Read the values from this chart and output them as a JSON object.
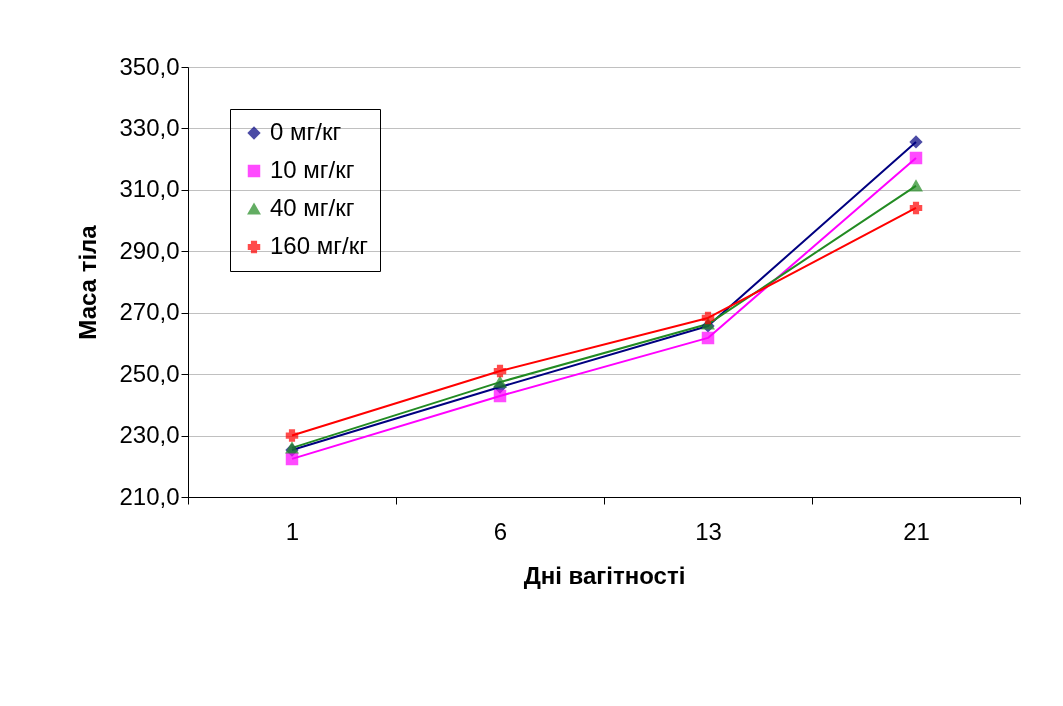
{
  "chart_data": {
    "type": "line",
    "xlabel": "Дні вагітності",
    "ylabel": "Маса тіла",
    "categories": [
      "1",
      "6",
      "13",
      "21"
    ],
    "ylim": [
      210,
      350
    ],
    "yticks": [
      {
        "value": 210,
        "label": "210,0"
      },
      {
        "value": 230,
        "label": "230,0"
      },
      {
        "value": 250,
        "label": "250,0"
      },
      {
        "value": 270,
        "label": "270,0"
      },
      {
        "value": 290,
        "label": "290,0"
      },
      {
        "value": 310,
        "label": "310,0"
      },
      {
        "value": 330,
        "label": "330,0"
      },
      {
        "value": 350,
        "label": "350,0"
      }
    ],
    "grid": "y",
    "legend": "top left",
    "series": [
      {
        "name": "0 мг/кг",
        "color": "#000080",
        "marker": "diamond",
        "values": [
          225.3,
          245.8,
          265.7,
          325.6
        ]
      },
      {
        "name": "10 мг/кг",
        "color": "#ff00ff",
        "marker": "square",
        "values": [
          222.4,
          242.9,
          261.8,
          320.4
        ]
      },
      {
        "name": "40 мг/кг",
        "color": "#228b22",
        "marker": "triangle",
        "values": [
          226,
          247.4,
          266.3,
          311.3
        ]
      },
      {
        "name": "160 мг/кг",
        "color": "#ff0000",
        "marker": "cross",
        "values": [
          230,
          251,
          268.3,
          304.1
        ]
      }
    ]
  }
}
